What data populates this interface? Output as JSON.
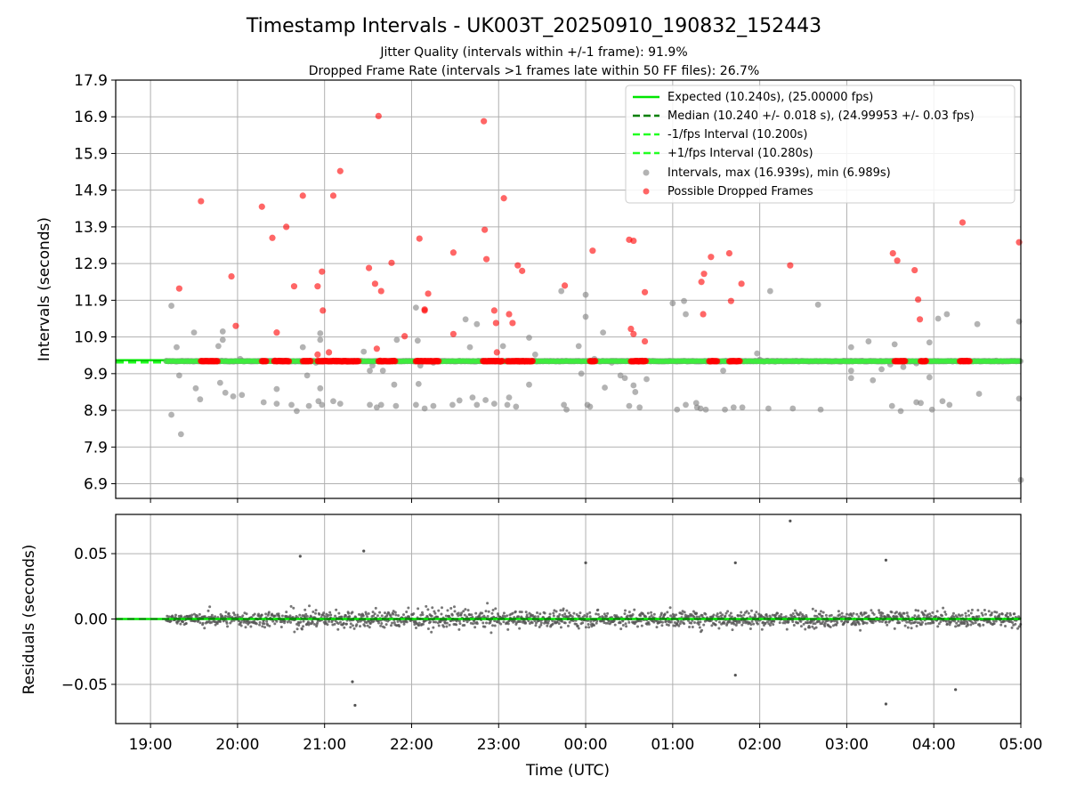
{
  "title": "Timestamp Intervals - UK003T_20250910_190832_152443",
  "subtitle_lines": [
    "Jitter Quality (intervals within +/-1 frame): 91.9%",
    "Dropped Frame Rate (intervals >1 frames late within 50 FF files): 26.7%"
  ],
  "colors": {
    "expected": "#00e600",
    "median": "#008000",
    "interval_band": "#22ff22",
    "intervals": "#808080",
    "dropped": "#ff0000",
    "residuals": "#555555",
    "grid": "#b0b0b0"
  },
  "chart_data": [
    {
      "type": "scatter",
      "ylabel": "Intervals (seconds)",
      "xlabel": "",
      "x_range_hours": [
        18.6,
        29.0
      ],
      "ylim": [
        6.5,
        17.9
      ],
      "yticks": [
        6.9,
        7.9,
        8.9,
        9.9,
        10.9,
        11.9,
        12.9,
        13.9,
        14.9,
        15.9,
        16.9,
        17.9
      ],
      "ytick_labels": [
        "6.9",
        "7.9",
        "8.9",
        "9.9",
        "10.9",
        "11.9",
        "12.9",
        "13.9",
        "14.9",
        "15.9",
        "16.9",
        "17.9"
      ],
      "grid": true,
      "legend_position": "top-right",
      "reference_lines": [
        {
          "name": "Expected (10.240s), (25.00000 fps)",
          "y": 10.24,
          "style": "solid"
        },
        {
          "name": "Median (10.240 +/- 0.018 s), (24.99953 +/- 0.03 fps)",
          "y": 10.24,
          "style": "dashed"
        },
        {
          "name": "-1/fps Interval (10.200s)",
          "y": 10.2,
          "style": "dashed"
        },
        {
          "name": "+1/fps Interval (10.280s)",
          "y": 10.28,
          "style": "dashed"
        }
      ],
      "series": [
        {
          "name": "Intervals, max (16.939s), min (6.989s)",
          "description": "x in hours since 00:00 of first day (e.g. 19.25 = 19:15); y = interval in seconds",
          "points": [
            [
              19.24,
              11.75
            ],
            [
              19.24,
              8.78
            ],
            [
              19.3,
              10.62
            ],
            [
              19.33,
              9.85
            ],
            [
              19.35,
              8.25
            ],
            [
              19.5,
              11.02
            ],
            [
              19.52,
              9.5
            ],
            [
              19.57,
              9.2
            ],
            [
              19.78,
              10.65
            ],
            [
              19.8,
              9.65
            ],
            [
              19.83,
              11.05
            ],
            [
              19.83,
              10.82
            ],
            [
              19.86,
              9.38
            ],
            [
              19.95,
              9.28
            ],
            [
              20.03,
              10.3
            ],
            [
              20.05,
              9.32
            ],
            [
              20.3,
              9.12
            ],
            [
              20.45,
              9.48
            ],
            [
              20.45,
              9.08
            ],
            [
              20.62,
              9.05
            ],
            [
              20.68,
              8.88
            ],
            [
              20.75,
              10.62
            ],
            [
              20.8,
              9.85
            ],
            [
              20.82,
              9.02
            ],
            [
              20.9,
              10.2
            ],
            [
              20.93,
              9.15
            ],
            [
              20.95,
              11.0
            ],
            [
              20.95,
              10.82
            ],
            [
              20.95,
              9.5
            ],
            [
              20.97,
              9.05
            ],
            [
              21.1,
              9.15
            ],
            [
              21.18,
              9.08
            ],
            [
              21.45,
              10.5
            ],
            [
              21.52,
              9.98
            ],
            [
              21.52,
              9.05
            ],
            [
              21.55,
              10.12
            ],
            [
              21.6,
              8.98
            ],
            [
              21.65,
              9.05
            ],
            [
              21.67,
              9.98
            ],
            [
              21.82,
              9.02
            ],
            [
              21.83,
              10.82
            ],
            [
              21.8,
              9.6
            ],
            [
              22.05,
              11.7
            ],
            [
              22.05,
              9.05
            ],
            [
              22.07,
              10.8
            ],
            [
              22.08,
              9.62
            ],
            [
              22.1,
              10.12
            ],
            [
              22.15,
              8.95
            ],
            [
              22.25,
              10.2
            ],
            [
              22.25,
              9.02
            ],
            [
              22.47,
              9.05
            ],
            [
              22.55,
              9.17
            ],
            [
              22.62,
              11.38
            ],
            [
              22.67,
              10.62
            ],
            [
              22.7,
              9.25
            ],
            [
              22.75,
              11.25
            ],
            [
              22.75,
              9.05
            ],
            [
              22.85,
              9.18
            ],
            [
              22.95,
              9.08
            ],
            [
              23.05,
              10.65
            ],
            [
              23.1,
              9.05
            ],
            [
              23.12,
              9.25
            ],
            [
              23.2,
              9.0
            ],
            [
              23.35,
              10.88
            ],
            [
              23.35,
              9.6
            ],
            [
              23.42,
              10.42
            ],
            [
              23.72,
              12.15
            ],
            [
              23.75,
              9.05
            ],
            [
              23.78,
              8.92
            ],
            [
              23.92,
              10.65
            ],
            [
              23.95,
              9.9
            ],
            [
              24.0,
              12.05
            ],
            [
              24.0,
              11.45
            ],
            [
              24.02,
              9.05
            ],
            [
              24.05,
              9.0
            ],
            [
              24.1,
              10.3
            ],
            [
              24.2,
              11.02
            ],
            [
              24.22,
              9.52
            ],
            [
              24.3,
              10.2
            ],
            [
              24.4,
              9.85
            ],
            [
              24.45,
              9.78
            ],
            [
              24.5,
              9.02
            ],
            [
              24.55,
              9.58
            ],
            [
              24.57,
              9.4
            ],
            [
              24.62,
              8.98
            ],
            [
              24.7,
              9.75
            ],
            [
              25.0,
              11.82
            ],
            [
              25.05,
              8.92
            ],
            [
              25.13,
              11.88
            ],
            [
              25.15,
              11.52
            ],
            [
              25.15,
              9.05
            ],
            [
              25.27,
              9.1
            ],
            [
              25.28,
              8.98
            ],
            [
              25.32,
              8.95
            ],
            [
              25.38,
              8.92
            ],
            [
              25.58,
              9.98
            ],
            [
              25.6,
              8.92
            ],
            [
              25.7,
              8.98
            ],
            [
              25.8,
              8.98
            ],
            [
              25.97,
              10.45
            ],
            [
              26.0,
              10.28
            ],
            [
              26.1,
              8.95
            ],
            [
              26.12,
              12.15
            ],
            [
              26.38,
              8.95
            ],
            [
              26.67,
              11.78
            ],
            [
              26.7,
              8.92
            ],
            [
              27.05,
              10.62
            ],
            [
              27.05,
              9.98
            ],
            [
              27.05,
              9.78
            ],
            [
              27.25,
              10.78
            ],
            [
              27.3,
              9.72
            ],
            [
              27.4,
              10.02
            ],
            [
              27.5,
              10.15
            ],
            [
              27.52,
              9.02
            ],
            [
              27.55,
              10.7
            ],
            [
              27.62,
              8.88
            ],
            [
              27.65,
              10.08
            ],
            [
              27.8,
              10.18
            ],
            [
              27.8,
              9.12
            ],
            [
              27.85,
              9.1
            ],
            [
              27.95,
              10.75
            ],
            [
              27.95,
              9.8
            ],
            [
              27.98,
              8.92
            ],
            [
              28.05,
              11.4
            ],
            [
              28.1,
              9.15
            ],
            [
              28.15,
              11.52
            ],
            [
              28.18,
              9.05
            ],
            [
              28.5,
              11.25
            ],
            [
              28.52,
              9.35
            ],
            [
              28.98,
              11.32
            ],
            [
              28.98,
              9.22
            ],
            [
              29.0,
              7.0
            ]
          ]
        },
        {
          "name": "Possible Dropped Frames",
          "points": [
            [
              19.33,
              12.22
            ],
            [
              19.58,
              14.6
            ],
            [
              19.93,
              12.55
            ],
            [
              19.98,
              11.2
            ],
            [
              20.28,
              14.45
            ],
            [
              20.4,
              13.6
            ],
            [
              20.45,
              11.02
            ],
            [
              20.56,
              13.9
            ],
            [
              20.65,
              12.28
            ],
            [
              20.75,
              14.75
            ],
            [
              20.92,
              12.28
            ],
            [
              20.92,
              10.42
            ],
            [
              20.97,
              12.68
            ],
            [
              20.98,
              11.62
            ],
            [
              21.05,
              10.48
            ],
            [
              21.1,
              14.75
            ],
            [
              21.18,
              15.42
            ],
            [
              21.51,
              12.78
            ],
            [
              21.58,
              12.35
            ],
            [
              21.6,
              10.58
            ],
            [
              21.62,
              16.92
            ],
            [
              21.65,
              12.15
            ],
            [
              21.77,
              12.92
            ],
            [
              21.92,
              10.92
            ],
            [
              22.09,
              13.58
            ],
            [
              22.15,
              11.65
            ],
            [
              22.15,
              11.62
            ],
            [
              22.19,
              12.08
            ],
            [
              22.48,
              10.98
            ],
            [
              22.48,
              13.2
            ],
            [
              22.83,
              16.78
            ],
            [
              22.84,
              13.82
            ],
            [
              22.86,
              13.02
            ],
            [
              22.95,
              11.62
            ],
            [
              22.97,
              11.28
            ],
            [
              22.98,
              10.48
            ],
            [
              23.06,
              14.68
            ],
            [
              23.12,
              11.52
            ],
            [
              23.16,
              11.28
            ],
            [
              23.22,
              12.85
            ],
            [
              23.27,
              12.7
            ],
            [
              23.76,
              12.3
            ],
            [
              24.08,
              13.25
            ],
            [
              24.5,
              13.55
            ],
            [
              24.55,
              13.52
            ],
            [
              24.52,
              11.12
            ],
            [
              24.55,
              10.98
            ],
            [
              24.68,
              12.12
            ],
            [
              24.68,
              10.78
            ],
            [
              25.33,
              12.4
            ],
            [
              25.36,
              12.62
            ],
            [
              25.35,
              11.52
            ],
            [
              25.44,
              13.08
            ],
            [
              25.65,
              13.18
            ],
            [
              25.67,
              11.88
            ],
            [
              25.79,
              12.35
            ],
            [
              26.35,
              12.85
            ],
            [
              27.53,
              13.18
            ],
            [
              27.58,
              12.98
            ],
            [
              27.78,
              12.72
            ],
            [
              27.82,
              11.92
            ],
            [
              27.84,
              11.38
            ],
            [
              28.33,
              14.02
            ],
            [
              28.98,
              13.48
            ]
          ],
          "baseline_clusters_hours": [
            [
              19.58,
              19.78
            ],
            [
              20.28,
              20.34
            ],
            [
              20.42,
              20.6
            ],
            [
              20.75,
              20.85
            ],
            [
              20.92,
              21.4
            ],
            [
              21.62,
              21.82
            ],
            [
              22.05,
              22.32
            ],
            [
              22.82,
              23.05
            ],
            [
              23.1,
              23.4
            ],
            [
              24.05,
              24.12
            ],
            [
              24.52,
              24.7
            ],
            [
              25.42,
              25.52
            ],
            [
              25.65,
              25.78
            ],
            [
              27.55,
              27.68
            ],
            [
              27.85,
              27.92
            ],
            [
              28.3,
              28.42
            ]
          ]
        }
      ]
    },
    {
      "type": "scatter",
      "ylabel": "Residuals (seconds)",
      "xlabel": "Time (UTC)",
      "x_range_hours": [
        18.6,
        29.0
      ],
      "ylim": [
        -0.08,
        0.08
      ],
      "yticks": [
        -0.05,
        0.0,
        0.05
      ],
      "ytick_labels": [
        "−0.05",
        "0.00",
        "0.05"
      ],
      "xticks_hours": [
        19,
        20,
        21,
        22,
        23,
        24,
        25,
        26,
        27,
        28,
        29
      ],
      "xtick_labels": [
        "19:00",
        "20:00",
        "21:00",
        "22:00",
        "23:00",
        "00:00",
        "01:00",
        "02:00",
        "03:00",
        "04:00",
        "05:00"
      ],
      "grid": true,
      "reference_line_y": 0.0,
      "series": [
        {
          "description": "residual scatter between 19:10 and 05:00, mostly within +/-0.03 s",
          "outliers": [
            [
              20.72,
              0.048
            ],
            [
              21.32,
              -0.048
            ],
            [
              21.35,
              -0.066
            ],
            [
              21.45,
              0.052
            ],
            [
              24.0,
              0.043
            ],
            [
              25.72,
              0.043
            ],
            [
              25.72,
              -0.043
            ],
            [
              26.35,
              0.075
            ],
            [
              27.45,
              -0.065
            ],
            [
              27.45,
              0.045
            ],
            [
              28.25,
              -0.054
            ]
          ]
        }
      ]
    }
  ]
}
